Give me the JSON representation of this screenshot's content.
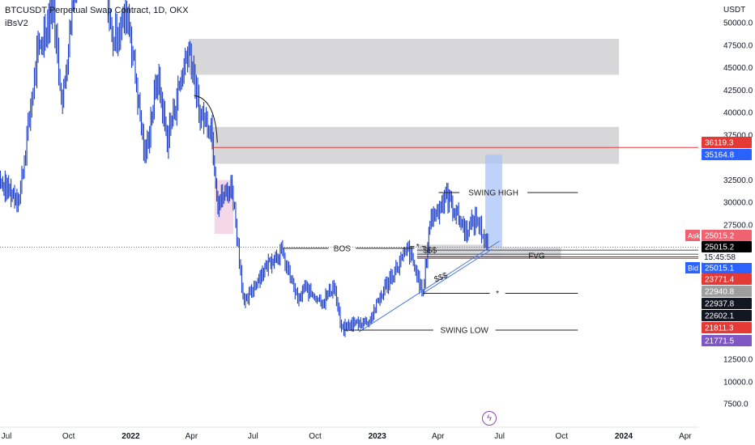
{
  "header": {
    "title": "BTCUSDT Perpetual Swap Contract, 1D, OKX",
    "indicator": "iBsV2"
  },
  "colors": {
    "candle": "#1e40c8",
    "zone_gray": "#d3d3d6",
    "zone_blue": "#a9c3f7",
    "zone_pink": "#f3d4e6",
    "red_line": "#e53935",
    "trend_line": "#4a78e0",
    "ask": "#f06272",
    "bid": "#2962ff",
    "purple": "#7e57c2"
  },
  "chart_data": {
    "type": "candlestick",
    "title": "BTCUSDT Perpetual Swap Contract, 1D, OKX",
    "y_unit": "USDT",
    "y_ticks": [
      7500,
      10000,
      12500,
      27500,
      30000,
      32500,
      37500,
      40000,
      42500,
      45000,
      47500,
      50000
    ],
    "y_tick_labels": [
      "7500.0",
      "10000.0",
      "12500.0",
      "27500.0",
      "30000.0",
      "32500.0",
      "37500.0",
      "40000.0",
      "42500.0",
      "45000.0",
      "47500.0",
      "50000.0"
    ],
    "x_ticks": [
      "Jul",
      "Oct",
      "2022",
      "Apr",
      "Jul",
      "Oct",
      "2023",
      "Apr",
      "Jul",
      "Oct",
      "2024",
      "Apr"
    ],
    "x_tick_dates": [
      "2021-07-01",
      "2021-10-01",
      "2022-01-01",
      "2022-04-01",
      "2022-07-01",
      "2022-10-01",
      "2023-01-01",
      "2023-04-01",
      "2023-07-01",
      "2023-10-01",
      "2024-01-01",
      "2024-04-01"
    ],
    "price_anchors": [
      [
        "2021-06-10",
        37000
      ],
      [
        "2021-06-22",
        32000
      ],
      [
        "2021-07-20",
        30500
      ],
      [
        "2021-08-15",
        46000
      ],
      [
        "2021-09-07",
        52000
      ],
      [
        "2021-09-22",
        41000
      ],
      [
        "2021-10-20",
        62000
      ],
      [
        "2021-11-10",
        67000
      ],
      [
        "2021-12-04",
        48000
      ],
      [
        "2021-12-28",
        51000
      ],
      [
        "2022-01-22",
        35000
      ],
      [
        "2022-02-10",
        44000
      ],
      [
        "2022-02-24",
        37000
      ],
      [
        "2022-03-28",
        47500
      ],
      [
        "2022-04-12",
        40000
      ],
      [
        "2022-04-30",
        38500
      ],
      [
        "2022-05-10",
        30000
      ],
      [
        "2022-05-31",
        31800
      ],
      [
        "2022-06-18",
        18500
      ],
      [
        "2022-07-08",
        21500
      ],
      [
        "2022-07-29",
        23800
      ],
      [
        "2022-08-12",
        24500
      ],
      [
        "2022-09-07",
        18900
      ],
      [
        "2022-09-14",
        20500
      ],
      [
        "2022-10-13",
        19000
      ],
      [
        "2022-10-29",
        20800
      ],
      [
        "2022-11-09",
        15800
      ],
      [
        "2022-11-25",
        16500
      ],
      [
        "2022-12-20",
        16800
      ],
      [
        "2023-01-14",
        20800
      ],
      [
        "2023-02-16",
        24800
      ],
      [
        "2023-03-10",
        19800
      ],
      [
        "2023-03-20",
        28000
      ],
      [
        "2023-04-14",
        30800
      ],
      [
        "2023-05-12",
        26800
      ],
      [
        "2023-05-28",
        28200
      ],
      [
        "2023-06-12",
        25400
      ],
      [
        "2023-06-15",
        25000
      ]
    ],
    "price_lines": [
      {
        "price": 36119.3,
        "label": "36119.3",
        "kind": "red-line"
      },
      {
        "price": 35164.8,
        "label": "35164.8",
        "kind": "blue-label"
      },
      {
        "price": 25015.2,
        "label": "25015.2",
        "kind": "ask"
      },
      {
        "price": 25015.2,
        "label": "25015.2",
        "kind": "last"
      },
      {
        "price": 25015.1,
        "label": "25015.1",
        "kind": "bid"
      },
      {
        "price": 23771.4,
        "label": "23771.4",
        "kind": "red-line"
      },
      {
        "price": 22940.8,
        "label": "22940.8",
        "kind": "gray"
      },
      {
        "price": 22937.8,
        "label": "22937.8",
        "kind": "black"
      },
      {
        "price": 22602.1,
        "label": "22602.1",
        "kind": "black"
      },
      {
        "price": 21811.3,
        "label": "21811.3",
        "kind": "red"
      },
      {
        "price": 21771.5,
        "label": "21771.5",
        "kind": "purple"
      }
    ],
    "countdown": "15:45:58",
    "ask_tag": "Ask",
    "bid_tag": "Bid",
    "zones": [
      {
        "name": "supply-zone-upper",
        "color": "gray",
        "from": "2022-03-28",
        "to": "2023-12-25",
        "y_low": 44200,
        "y_high": 48200
      },
      {
        "name": "supply-zone-lower",
        "color": "gray",
        "from": "2022-05-01",
        "to": "2023-12-25",
        "y_low": 34300,
        "y_high": 38400
      },
      {
        "name": "pink-zone",
        "color": "pink",
        "from": "2022-05-05",
        "to": "2022-06-02",
        "y_low": 26500,
        "y_high": 32500
      },
      {
        "name": "blue-zone",
        "color": "blue",
        "from": "2023-06-10",
        "to": "2023-07-05",
        "y_low": 23800,
        "y_high": 35300
      },
      {
        "name": "fvg-zone",
        "color": "gray",
        "from": "2023-03-01",
        "to": "2023-09-30",
        "y_low": 23800,
        "y_high": 25000
      },
      {
        "name": "sss-zone",
        "color": "gray",
        "from": "2023-03-01",
        "to": "2023-06-25",
        "y_low": 24500,
        "y_high": 25300
      }
    ],
    "annotations": [
      {
        "name": "swing-high-line",
        "text": "SWING HIGH",
        "from": "2023-04-02",
        "to": "2023-10-25",
        "price": 31100,
        "text_at": "2023-06-22"
      },
      {
        "name": "swing-low-line",
        "text": "SWING LOW",
        "from": "2022-11-12",
        "to": "2023-10-25",
        "price": 15800,
        "text_at": "2023-05-10"
      },
      {
        "name": "bos-line",
        "text": "BOS",
        "from": "2022-08-14",
        "to": "2023-02-25",
        "price": 24900,
        "text_at": "2022-11-10"
      },
      {
        "name": "star-line-upper",
        "text": "*",
        "from": "2023-02-25",
        "to": "2023-03-08",
        "price": 25100,
        "text_at": "2023-03-02"
      },
      {
        "name": "star-line-lower",
        "text": "*",
        "from": "2023-03-10",
        "to": "2023-10-25",
        "price": 19900,
        "text_at": "2023-06-28"
      },
      {
        "name": "fvg-label",
        "text": "FVG",
        "from": "2023-03-10",
        "to": "2023-10-01",
        "price": 24100,
        "text_at": "2023-08-25"
      },
      {
        "name": "sss-label-upper",
        "text": "$$$",
        "from": "2023-03-01",
        "to": "2023-03-01",
        "price": 24700,
        "text_at": "2023-03-20"
      },
      {
        "name": "sss-label-lower",
        "text": "$$$",
        "from": "2023-03-01",
        "to": "2023-03-01",
        "price": 21700,
        "text_at": "2023-04-05"
      }
    ],
    "trend_line": {
      "from": [
        "2022-12-05",
        15600
      ],
      "to": [
        "2023-07-01",
        25700
      ]
    },
    "trend_line_2": {
      "from": [
        "2023-03-10",
        19900
      ],
      "to": [
        "2023-06-20",
        24800
      ]
    },
    "swing_curve": {
      "from": [
        "2022-04-12",
        41000
      ],
      "to": [
        "2022-05-02",
        37000
      ]
    },
    "grid": false,
    "legend": "none"
  }
}
